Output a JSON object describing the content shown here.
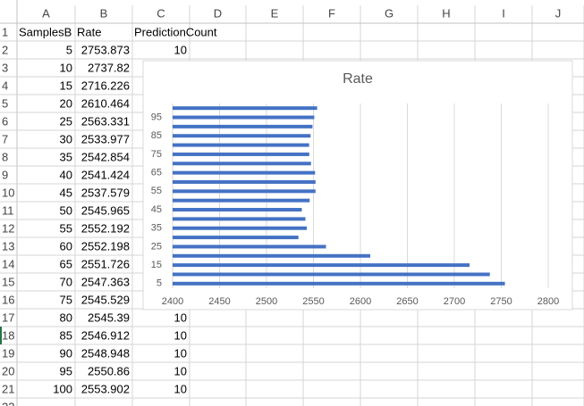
{
  "sheet": {
    "columns": [
      "A",
      "B",
      "C",
      "D",
      "E",
      "F",
      "G",
      "H",
      "I",
      "J"
    ],
    "rows": [
      {
        "n": 1,
        "A": "SamplesB",
        "B": "Rate",
        "C": "PredictionCount"
      },
      {
        "n": 2,
        "A": 5,
        "B": 2753.873,
        "C": 10
      },
      {
        "n": 3,
        "A": 10,
        "B": 2737.82
      },
      {
        "n": 4,
        "A": 15,
        "B": 2716.226
      },
      {
        "n": 5,
        "A": 20,
        "B": 2610.464
      },
      {
        "n": 6,
        "A": 25,
        "B": 2563.331
      },
      {
        "n": 7,
        "A": 30,
        "B": 2533.977
      },
      {
        "n": 8,
        "A": 35,
        "B": 2542.854
      },
      {
        "n": 9,
        "A": 40,
        "B": 2541.424
      },
      {
        "n": 10,
        "A": 45,
        "B": 2537.579
      },
      {
        "n": 11,
        "A": 50,
        "B": 2545.965
      },
      {
        "n": 12,
        "A": 55,
        "B": 2552.192
      },
      {
        "n": 13,
        "A": 60,
        "B": 2552.198
      },
      {
        "n": 14,
        "A": 65,
        "B": 2551.726
      },
      {
        "n": 15,
        "A": 70,
        "B": 2547.363
      },
      {
        "n": 16,
        "A": 75,
        "B": 2545.529
      },
      {
        "n": 17,
        "A": 80,
        "B": 2545.39,
        "C": 10
      },
      {
        "n": 18,
        "A": 85,
        "B": 2546.912,
        "C": 10
      },
      {
        "n": 19,
        "A": 90,
        "B": 2548.948,
        "C": 10
      },
      {
        "n": 20,
        "A": 95,
        "B": 2550.86,
        "C": 10
      },
      {
        "n": 21,
        "A": 100,
        "B": 2553.902,
        "C": 10
      },
      {
        "n": 22
      }
    ]
  },
  "chart_data": {
    "type": "barh",
    "title": "Rate",
    "categories": [
      5,
      null,
      15,
      null,
      25,
      null,
      35,
      null,
      45,
      null,
      55,
      null,
      65,
      null,
      75,
      null,
      85,
      null,
      95,
      null
    ],
    "values": [
      2753.873,
      2737.82,
      2716.226,
      2610.464,
      2563.331,
      2533.977,
      2542.854,
      2541.424,
      2537.579,
      2545.965,
      2552.192,
      2552.198,
      2551.726,
      2547.363,
      2545.529,
      2545.39,
      2546.912,
      2548.948,
      2550.86,
      2553.902
    ],
    "color": "#4472c4",
    "xlim": [
      2400,
      2800
    ],
    "xticks": [
      2400,
      2450,
      2500,
      2550,
      2600,
      2650,
      2700,
      2750,
      2800
    ],
    "grid": true
  }
}
